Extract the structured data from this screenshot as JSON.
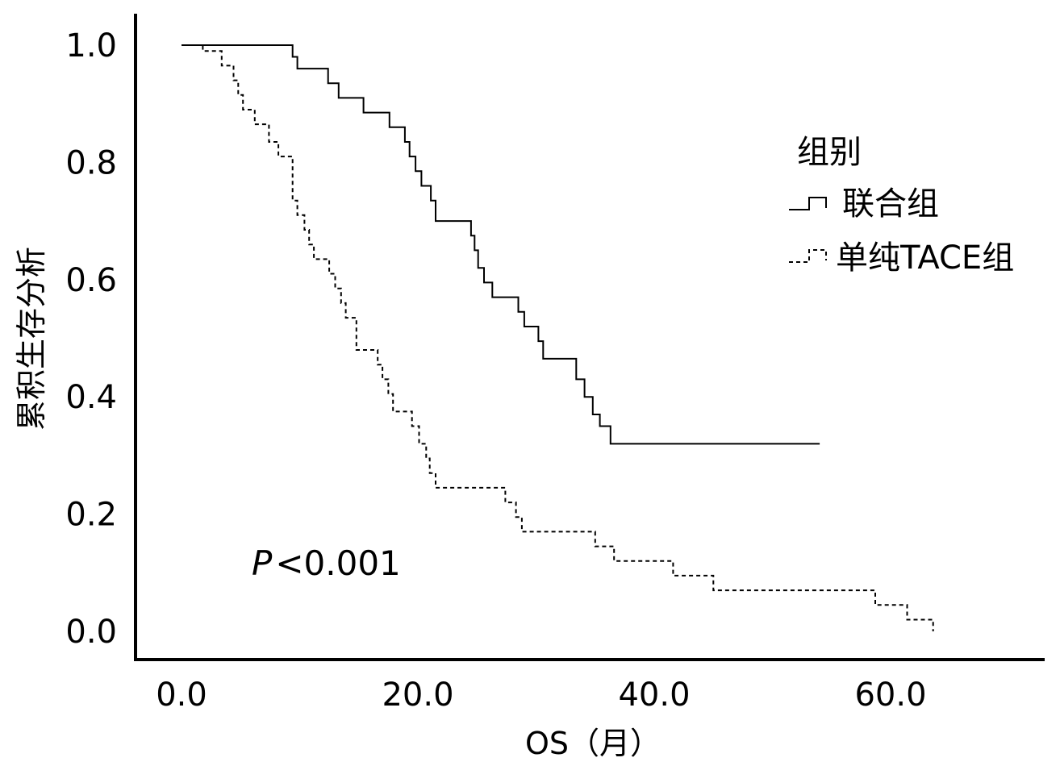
{
  "chart_data": {
    "type": "line",
    "xlabel": "OS（月）",
    "ylabel": "累积生存分析",
    "xlim": [
      -4,
      73
    ],
    "ylim": [
      -0.05,
      1.05
    ],
    "x_ticks": [
      "0.0",
      "20.0",
      "40.0",
      "60.0"
    ],
    "x_tick_values": [
      0,
      20,
      40,
      60
    ],
    "y_ticks": [
      "0.0",
      "0.2",
      "0.4",
      "0.6",
      "0.8",
      "1.0"
    ],
    "y_tick_values": [
      0,
      0.2,
      0.4,
      0.6,
      0.8,
      1.0
    ],
    "grid": false,
    "legend_title": "组别",
    "legend_position": "right",
    "annotation": {
      "italic": "P",
      "text": "<0.001"
    },
    "series": [
      {
        "name": "联合组",
        "style": "solid",
        "color": "#000000",
        "x": [
          0,
          9.4,
          9.4,
          9.8,
          9.8,
          12.4,
          12.4,
          13.3,
          13.3,
          15.4,
          15.4,
          17.6,
          17.6,
          18.9,
          18.9,
          19.3,
          19.3,
          19.8,
          19.8,
          20.3,
          20.3,
          21.1,
          21.1,
          21.5,
          21.5,
          24.5,
          24.5,
          24.8,
          24.8,
          25.1,
          25.1,
          25.6,
          25.6,
          26.3,
          26.3,
          28.5,
          28.5,
          29.0,
          29.0,
          30.2,
          30.2,
          30.6,
          30.6,
          32.0,
          32.0,
          33.4,
          33.4,
          34.1,
          34.1,
          34.8,
          34.8,
          35.4,
          35.4,
          36.3,
          36.3,
          54.0
        ],
        "y": [
          1.0,
          1.0,
          0.98,
          0.98,
          0.96,
          0.96,
          0.935,
          0.935,
          0.91,
          0.91,
          0.885,
          0.885,
          0.86,
          0.86,
          0.835,
          0.835,
          0.81,
          0.81,
          0.785,
          0.785,
          0.76,
          0.76,
          0.735,
          0.735,
          0.7,
          0.7,
          0.675,
          0.675,
          0.65,
          0.65,
          0.62,
          0.62,
          0.595,
          0.595,
          0.57,
          0.57,
          0.545,
          0.545,
          0.52,
          0.52,
          0.495,
          0.495,
          0.465,
          0.465,
          0.465,
          0.465,
          0.43,
          0.43,
          0.4,
          0.4,
          0.37,
          0.37,
          0.35,
          0.35,
          0.32,
          0.32
        ]
      },
      {
        "name": "单纯TACE组",
        "style": "dashed",
        "color": "#000000",
        "x": [
          0,
          1.8,
          1.8,
          3.4,
          3.4,
          4.4,
          4.4,
          4.8,
          4.8,
          5.2,
          5.2,
          6.2,
          6.2,
          7.4,
          7.4,
          8.2,
          8.2,
          9.4,
          9.4,
          9.8,
          9.8,
          10.4,
          10.4,
          10.8,
          10.8,
          11.2,
          11.2,
          12.5,
          12.5,
          13.0,
          13.0,
          13.5,
          13.5,
          13.9,
          13.9,
          14.8,
          14.8,
          16.6,
          16.6,
          17.0,
          17.0,
          17.5,
          17.5,
          17.9,
          17.9,
          19.5,
          19.5,
          20.1,
          20.1,
          20.7,
          20.7,
          21.0,
          21.0,
          21.5,
          21.5,
          27.4,
          27.4,
          28.3,
          28.3,
          28.8,
          28.8,
          35.0,
          35.0,
          36.6,
          36.6,
          41.6,
          41.6,
          45.0,
          45.0,
          58.7,
          58.7,
          61.4,
          61.4,
          63.6,
          63.6
        ],
        "y": [
          1.0,
          1.0,
          0.99,
          0.99,
          0.965,
          0.965,
          0.94,
          0.94,
          0.915,
          0.915,
          0.89,
          0.89,
          0.865,
          0.865,
          0.835,
          0.835,
          0.81,
          0.81,
          0.735,
          0.735,
          0.71,
          0.71,
          0.685,
          0.685,
          0.66,
          0.66,
          0.635,
          0.635,
          0.61,
          0.61,
          0.585,
          0.585,
          0.56,
          0.56,
          0.535,
          0.535,
          0.48,
          0.48,
          0.455,
          0.455,
          0.43,
          0.43,
          0.405,
          0.405,
          0.375,
          0.375,
          0.35,
          0.35,
          0.32,
          0.32,
          0.295,
          0.295,
          0.27,
          0.27,
          0.245,
          0.245,
          0.22,
          0.22,
          0.195,
          0.195,
          0.17,
          0.17,
          0.145,
          0.145,
          0.12,
          0.12,
          0.095,
          0.095,
          0.07,
          0.07,
          0.045,
          0.045,
          0.02,
          0.02,
          0.0
        ]
      }
    ]
  }
}
